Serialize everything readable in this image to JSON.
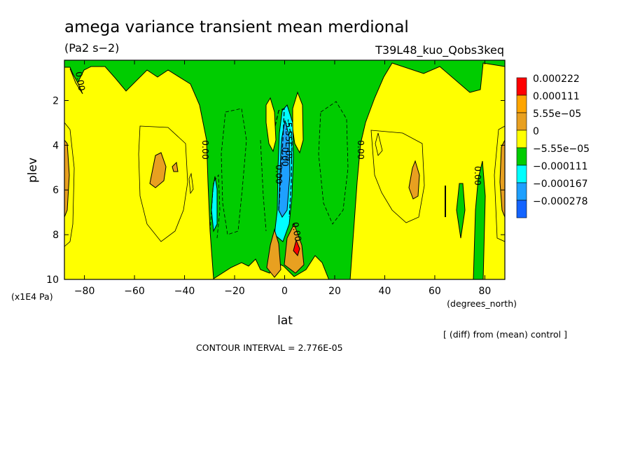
{
  "chart_data": {
    "type": "heatmap",
    "subtype": "filled-contour",
    "title": "amega variance transient mean merdional",
    "units": "(Pa2 s−2)",
    "run_id": "T39L48_kuo_Qobs3keq",
    "xlabel": "lat",
    "xunits": "(degrees_north)",
    "ylabel": "plev",
    "yunits": "(x1E4 Pa)",
    "xlim": [
      -88,
      88
    ],
    "ylim": [
      10,
      0.2
    ],
    "y_inverted": true,
    "xticks": [
      -80,
      -60,
      -40,
      -20,
      0,
      20,
      40,
      60,
      80
    ],
    "yticks": [
      2,
      4,
      6,
      8,
      10
    ],
    "contour_interval_text": "CONTOUR INTERVAL = 2.776E-05",
    "diff_note": "[ (diff) from (mean) control ]",
    "contour_labels": [
      "0.00",
      "0.00",
      "0.00",
      "0.00",
      "0.00",
      "0.00",
      "-5.55E-05",
      "0.00"
    ],
    "legend": {
      "levels": [
        "0.000222",
        "0.000111",
        "5.55e−05",
        "0",
        "−5.55e−05",
        "−0.000111",
        "−0.000167",
        "−0.000278"
      ],
      "colors": [
        "#ff0000",
        "#ffa500",
        "#e8a020",
        "#ffff00",
        "#00cc00",
        "#00ffff",
        "#1ea0ff",
        "#1464ff"
      ]
    },
    "colors": {
      "positive_small": "#ffff00",
      "positive_mid": "#e8a020",
      "positive_high": "#ff0000",
      "negative_small": "#00cc00",
      "negative_mid": "#00ffff",
      "negative_high": "#1ea0ff",
      "negative_max": "#1464ff"
    },
    "regions": [
      {
        "sign": "negative",
        "level": "−5.55e−05",
        "lat_range": [
          -30,
          32
        ],
        "plev_range": [
          0.2,
          10
        ],
        "note": "central band"
      },
      {
        "sign": "negative",
        "level": "−5.55e−05",
        "lat_range": [
          -88,
          72
        ],
        "plev_range": [
          0.2,
          1.5
        ],
        "note": "upper levels"
      },
      {
        "sign": "negative",
        "level": "−0.000111",
        "lat_range": [
          -5,
          3
        ],
        "plev_range": [
          2.5,
          8.5
        ]
      },
      {
        "sign": "negative",
        "level": "−0.000167",
        "lat_range": [
          -2,
          2
        ],
        "plev_range": [
          3,
          7
        ]
      },
      {
        "sign": "positive",
        "level": "5.55e−05",
        "lat_range": [
          -55,
          -48
        ],
        "plev_range": [
          4,
          6.5
        ]
      },
      {
        "sign": "positive",
        "level": "5.55e−05",
        "lat_range": [
          49,
          54
        ],
        "plev_range": [
          4.5,
          7.2
        ]
      },
      {
        "sign": "positive",
        "level": "0.000111",
        "lat_range": [
          -5,
          -1
        ],
        "plev_range": [
          8,
          9.6
        ]
      },
      {
        "sign": "positive",
        "level": "0.000222",
        "lat_range": [
          3,
          6
        ],
        "plev_range": [
          8.1,
          9.2
        ]
      }
    ]
  }
}
